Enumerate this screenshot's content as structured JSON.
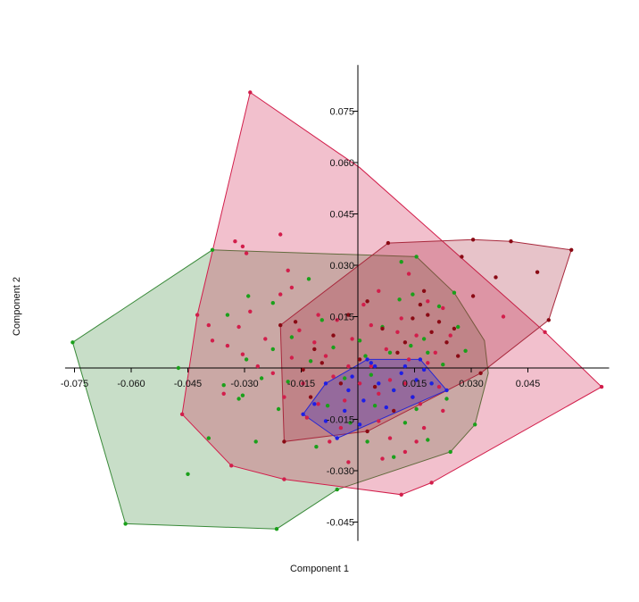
{
  "chart_data": {
    "type": "scatter",
    "title": "",
    "xlabel": "Component 1",
    "ylabel": "Component 2",
    "xlim": [
      -0.0775,
      0.0665
    ],
    "ylim": [
      -0.0505,
      0.0885
    ],
    "x_ticks": [
      -0.075,
      -0.06,
      -0.045,
      -0.03,
      -0.015,
      0.015,
      0.03,
      0.045
    ],
    "x_tick_labels": [
      "-0.075",
      "-0.060",
      "-0.045",
      "-0.030",
      "-0.015",
      "0.015",
      "0.030",
      "0.045"
    ],
    "y_ticks": [
      0.075,
      0.06,
      0.045,
      0.03,
      0.015,
      -0.015,
      -0.03,
      -0.045
    ],
    "y_tick_labels": [
      "0.075",
      "0.060",
      "0.045",
      "0.030",
      "0.015",
      "-0.015",
      "-0.030",
      "-0.045"
    ],
    "grid": false,
    "legend": "none",
    "series": [
      {
        "color": "#1aa01a",
        "hull_color": "#3a8a3a",
        "hull": [
          [
            -0.0755,
            0.0075
          ],
          [
            -0.0385,
            0.0345
          ],
          [
            0.0155,
            0.0325
          ],
          [
            0.0255,
            0.022
          ],
          [
            0.0335,
            0.008
          ],
          [
            0.0345,
            -0.0015
          ],
          [
            0.031,
            -0.0165
          ],
          [
            0.0245,
            -0.0245
          ],
          [
            -0.0055,
            -0.0355
          ],
          [
            -0.0215,
            -0.047
          ],
          [
            -0.0615,
            -0.0455
          ]
        ],
        "points": [
          [
            -0.0755,
            0.0075
          ],
          [
            -0.0385,
            0.0345
          ],
          [
            -0.0475,
            0.0
          ],
          [
            -0.0345,
            0.0155
          ],
          [
            -0.0355,
            -0.005
          ],
          [
            -0.029,
            0.021
          ],
          [
            -0.0305,
            -0.008
          ],
          [
            -0.0295,
            0.0025
          ],
          [
            -0.0255,
            -0.003
          ],
          [
            -0.0225,
            0.019
          ],
          [
            -0.0175,
            0.009
          ],
          [
            -0.0185,
            -0.004
          ],
          [
            -0.021,
            -0.012
          ],
          [
            -0.013,
            0.026
          ],
          [
            -0.0125,
            0.002
          ],
          [
            -0.0095,
            0.014
          ],
          [
            -0.008,
            -0.011
          ],
          [
            -0.0065,
            0.006
          ],
          [
            -0.0035,
            -0.003
          ],
          [
            -0.002,
            -0.016
          ],
          [
            0.0005,
            0.008
          ],
          [
            0.002,
            0.0035
          ],
          [
            0.0035,
            -0.002
          ],
          [
            0.0045,
            -0.011
          ],
          [
            0.0065,
            0.012
          ],
          [
            0.0085,
            0.0045
          ],
          [
            0.0095,
            -0.0065
          ],
          [
            0.011,
            0.02
          ],
          [
            0.0115,
            0.031
          ],
          [
            0.0125,
            -0.016
          ],
          [
            0.014,
            0.0065
          ],
          [
            0.0145,
            0.0215
          ],
          [
            0.0155,
            -0.012
          ],
          [
            0.0175,
            0.0085
          ],
          [
            0.0185,
            0.0045
          ],
          [
            0.0195,
            -0.0045
          ],
          [
            0.0215,
            0.018
          ],
          [
            0.0225,
            0.001
          ],
          [
            0.0235,
            -0.009
          ],
          [
            0.0255,
            0.022
          ],
          [
            0.0265,
            0.012
          ],
          [
            0.0285,
            0.005
          ],
          [
            0.031,
            -0.0165
          ],
          [
            0.0245,
            -0.0245
          ],
          [
            -0.0055,
            -0.0355
          ],
          [
            -0.045,
            -0.031
          ],
          [
            -0.0395,
            -0.0205
          ],
          [
            -0.027,
            -0.0215
          ],
          [
            -0.0315,
            -0.009
          ],
          [
            -0.0225,
            0.0055
          ],
          [
            -0.011,
            -0.023
          ],
          [
            0.0025,
            -0.0215
          ],
          [
            0.0095,
            -0.026
          ],
          [
            0.0185,
            -0.021
          ],
          [
            -0.0215,
            -0.047
          ],
          [
            -0.0615,
            -0.0455
          ],
          [
            0.0155,
            0.0325
          ]
        ]
      },
      {
        "color": "#d21e4b",
        "hull_color": "#d21e4b",
        "hull": [
          [
            -0.0285,
            0.0805
          ],
          [
            0.0005,
            0.0585
          ],
          [
            0.0495,
            0.0105
          ],
          [
            0.0645,
            -0.0055
          ],
          [
            0.0195,
            -0.0335
          ],
          [
            0.0115,
            -0.037
          ],
          [
            -0.0195,
            -0.0325
          ],
          [
            -0.0335,
            -0.0285
          ],
          [
            -0.0465,
            -0.0135
          ],
          [
            -0.0425,
            0.0155
          ]
        ],
        "points": [
          [
            -0.0285,
            0.0805
          ],
          [
            -0.0425,
            0.0155
          ],
          [
            -0.0465,
            -0.0135
          ],
          [
            -0.0335,
            -0.0285
          ],
          [
            -0.0195,
            -0.0325
          ],
          [
            0.0115,
            -0.037
          ],
          [
            0.0195,
            -0.0335
          ],
          [
            0.0645,
            -0.0055
          ],
          [
            0.0495,
            0.0105
          ],
          [
            -0.0325,
            0.037
          ],
          [
            -0.0305,
            0.0355
          ],
          [
            -0.0295,
            0.0335
          ],
          [
            -0.0205,
            0.039
          ],
          [
            -0.0205,
            0.0215
          ],
          [
            -0.0185,
            0.0285
          ],
          [
            -0.0175,
            0.0235
          ],
          [
            -0.0395,
            0.0125
          ],
          [
            -0.0385,
            0.008
          ],
          [
            -0.0345,
            0.0065
          ],
          [
            -0.0315,
            0.012
          ],
          [
            -0.0305,
            0.004
          ],
          [
            -0.0285,
            0.0165
          ],
          [
            -0.0265,
            0.0005
          ],
          [
            -0.0245,
            0.0085
          ],
          [
            -0.0225,
            -0.0015
          ],
          [
            -0.0195,
            -0.0085
          ],
          [
            -0.0175,
            0.003
          ],
          [
            -0.0155,
            0.011
          ],
          [
            -0.0145,
            -0.0045
          ],
          [
            -0.0115,
            0.0075
          ],
          [
            -0.0105,
            -0.0105
          ],
          [
            -0.0085,
            0.0035
          ],
          [
            -0.0065,
            -0.0025
          ],
          [
            -0.0055,
            0.014
          ],
          [
            -0.0035,
            -0.0095
          ],
          [
            -0.0025,
            0.0005
          ],
          [
            -0.0015,
            0.0085
          ],
          [
            0.0005,
            -0.0045
          ],
          [
            0.0015,
            0.0185
          ],
          [
            0.0035,
            0.0005
          ],
          [
            0.0055,
            -0.0075
          ],
          [
            0.0075,
            0.0055
          ],
          [
            0.0085,
            -0.0035
          ],
          [
            0.0105,
            0.0105
          ],
          [
            0.0125,
            -0.0045
          ],
          [
            0.0135,
            0.0025
          ],
          [
            0.0155,
            0.0095
          ],
          [
            0.0165,
            -0.0105
          ],
          [
            0.0185,
            0.0015
          ],
          [
            0.0205,
            0.0045
          ],
          [
            0.0215,
            -0.0055
          ],
          [
            -0.0075,
            -0.0215
          ],
          [
            -0.0045,
            -0.0175
          ],
          [
            0.0055,
            -0.0155
          ],
          [
            0.0085,
            -0.0205
          ],
          [
            0.0125,
            -0.0245
          ],
          [
            0.0155,
            -0.0215
          ],
          [
            0.0175,
            -0.0175
          ],
          [
            0.0225,
            -0.0125
          ],
          [
            0.0035,
            0.0125
          ],
          [
            0.0055,
            0.0225
          ],
          [
            0.0115,
            0.0145
          ],
          [
            0.0135,
            0.0275
          ],
          [
            0.0185,
            0.0195
          ],
          [
            0.0245,
            0.0095
          ],
          [
            0.0385,
            0.015
          ],
          [
            -0.0355,
            -0.0075
          ],
          [
            -0.0105,
            0.0155
          ],
          [
            0.0065,
            -0.0265
          ],
          [
            -0.0135,
            -0.0145
          ],
          [
            -0.0025,
            -0.0275
          ],
          [
            0.0225,
            0.0175
          ]
        ]
      },
      {
        "color": "#8a0a14",
        "hull_color": "#a8283c",
        "hull": [
          [
            0.008,
            0.0365
          ],
          [
            0.0305,
            0.0375
          ],
          [
            0.0405,
            0.037
          ],
          [
            0.0565,
            0.0345
          ],
          [
            0.0505,
            0.014
          ],
          [
            0.0325,
            -0.0015
          ],
          [
            0.0025,
            -0.0185
          ],
          [
            -0.0195,
            -0.0215
          ],
          [
            -0.0205,
            0.0125
          ]
        ],
        "points": [
          [
            0.008,
            0.0365
          ],
          [
            0.0305,
            0.0375
          ],
          [
            0.0405,
            0.037
          ],
          [
            0.0565,
            0.0345
          ],
          [
            0.0505,
            0.014
          ],
          [
            0.0325,
            -0.0015
          ],
          [
            0.0025,
            -0.0185
          ],
          [
            -0.0195,
            -0.0215
          ],
          [
            -0.0205,
            0.0125
          ],
          [
            0.0275,
            0.0325
          ],
          [
            0.0365,
            0.0265
          ],
          [
            0.0475,
            0.028
          ],
          [
            0.0305,
            0.021
          ],
          [
            0.0175,
            0.0225
          ],
          [
            0.0145,
            0.0145
          ],
          [
            0.0195,
            0.0105
          ],
          [
            0.0235,
            0.0075
          ],
          [
            0.0265,
            0.0035
          ],
          [
            0.0105,
            0.0045
          ],
          [
            0.0065,
            0.0115
          ],
          [
            0.0025,
            0.0195
          ],
          [
            -0.0025,
            0.0155
          ],
          [
            -0.0065,
            0.0095
          ],
          [
            -0.0115,
            0.0055
          ],
          [
            -0.0145,
            -0.0005
          ],
          [
            -0.0125,
            -0.0085
          ],
          [
            -0.0165,
            0.0135
          ],
          [
            -0.0095,
            0.0015
          ],
          [
            -0.0045,
            -0.0045
          ],
          [
            0.0045,
            -0.0055
          ],
          [
            0.0095,
            -0.0125
          ],
          [
            0.0145,
            -0.0085
          ],
          [
            0.0185,
            0.0155
          ],
          [
            0.0215,
            0.0135
          ],
          [
            0.0255,
            0.0115
          ],
          [
            0.0125,
            0.0075
          ],
          [
            0.0005,
            0.0025
          ],
          [
            0.0165,
            0.0185
          ]
        ]
      },
      {
        "color": "#1e1ee6",
        "hull_color": "#2828d2",
        "hull": [
          [
            0.0025,
            0.0025
          ],
          [
            0.0165,
            0.0025
          ],
          [
            0.0235,
            -0.0065
          ],
          [
            -0.0055,
            -0.0205
          ],
          [
            -0.0145,
            -0.0135
          ],
          [
            -0.0085,
            -0.0045
          ]
        ],
        "points": [
          [
            0.0025,
            0.0025
          ],
          [
            0.0165,
            0.0025
          ],
          [
            0.0235,
            -0.0065
          ],
          [
            -0.0055,
            -0.0205
          ],
          [
            -0.0145,
            -0.0135
          ],
          [
            -0.0085,
            -0.0045
          ],
          [
            0.0035,
            0.0015
          ],
          [
            0.0115,
            -0.0015
          ],
          [
            0.0155,
            -0.0035
          ],
          [
            0.0175,
            -0.0005
          ],
          [
            0.0145,
            -0.0085
          ],
          [
            0.0075,
            -0.0115
          ],
          [
            0.0015,
            -0.0095
          ],
          [
            -0.0025,
            -0.0065
          ],
          [
            -0.0035,
            -0.0125
          ],
          [
            -0.0085,
            -0.0155
          ],
          [
            -0.0115,
            -0.0105
          ],
          [
            0.0005,
            -0.0165
          ],
          [
            0.0055,
            -0.0045
          ],
          [
            0.0095,
            -0.0065
          ],
          [
            0.0045,
            0.0005
          ],
          [
            -0.0015,
            -0.0025
          ],
          [
            0.0125,
            0.0005
          ],
          [
            0.0195,
            -0.0045
          ]
        ]
      }
    ]
  }
}
